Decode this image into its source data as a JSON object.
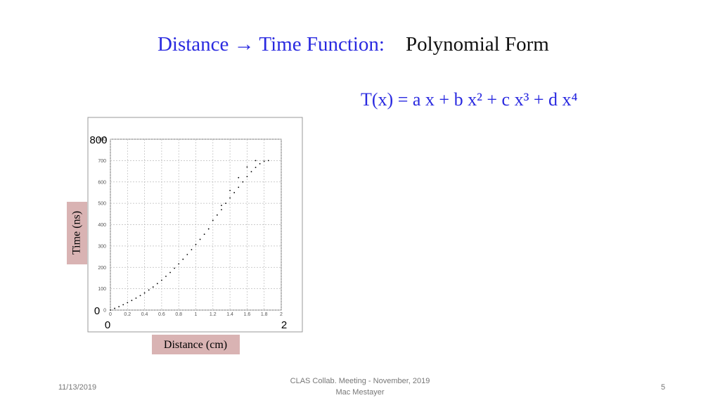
{
  "slide": {
    "title_blue": "Distance → Time Function:",
    "title_black": "Polynomial Form",
    "formula": "T(x) = a x + b x² + c x³ + d x⁴",
    "footer": {
      "date": "11/13/2019",
      "center_line1": "CLAS Collab. Meeting - November, 2019",
      "center_line2": "Mac Mestayer",
      "page": "5"
    }
  },
  "chart_data": {
    "type": "scatter",
    "xlabel": "Distance (cm)",
    "ylabel": "Time (ns)",
    "overlay_labels": {
      "x_min": "0",
      "x_max": "2",
      "y_min": "0",
      "y_max": "800"
    },
    "xlim": [
      0,
      2
    ],
    "ylim": [
      0,
      800
    ],
    "xticks": [
      0,
      0.2,
      0.4,
      0.6,
      0.8,
      1,
      1.2,
      1.4,
      1.6,
      1.8,
      2
    ],
    "yticks": [
      0,
      100,
      200,
      300,
      400,
      500,
      600,
      700,
      800
    ],
    "grid": true,
    "color": "#000000",
    "x": [
      0,
      0.05,
      0.1,
      0.15,
      0.2,
      0.25,
      0.3,
      0.35,
      0.4,
      0.45,
      0.5,
      0.55,
      0.6,
      0.65,
      0.7,
      0.75,
      0.8,
      0.85,
      0.9,
      0.95,
      1.0,
      1.05,
      1.1,
      1.15,
      1.2,
      1.25,
      1.3,
      1.35,
      1.4,
      1.45,
      1.5,
      1.55,
      1.6,
      1.65,
      1.7,
      1.75,
      1.8,
      1.85,
      1.3,
      1.4,
      1.5,
      1.6,
      1.7
    ],
    "y": [
      0,
      8,
      16,
      25,
      35,
      45,
      56,
      68,
      80,
      94,
      108,
      124,
      140,
      158,
      176,
      196,
      216,
      238,
      260,
      283,
      307,
      331,
      355,
      380,
      420,
      445,
      470,
      500,
      525,
      550,
      575,
      600,
      625,
      648,
      668,
      685,
      697,
      700,
      490,
      560,
      620,
      670,
      700
    ]
  }
}
